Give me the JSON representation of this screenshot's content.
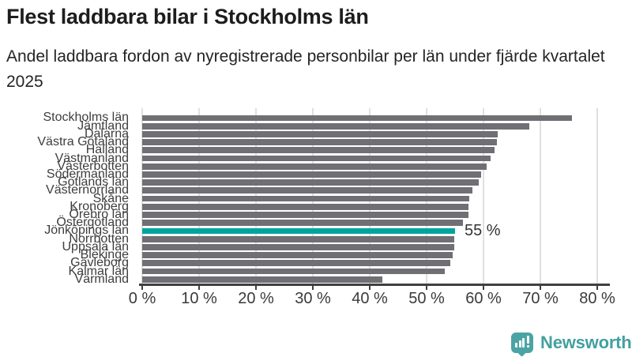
{
  "header": {
    "title": "Flest laddbara bilar i Stockholms län",
    "subtitle": "Andel laddbara fordon av nyregistrerade personbilar per län under fjärde kvartalet 2025"
  },
  "chart_data": {
    "type": "bar",
    "orientation": "horizontal",
    "title": "Flest laddbara bilar i Stockholms län",
    "subtitle": "Andel laddbara fordon av nyregistrerade personbilar per län under fjärde kvartalet 2025",
    "unit": "%",
    "categories": [
      "Stockholms län",
      "Jämtland",
      "Dalarna",
      "Västra Götaland",
      "Halland",
      "Västmanland",
      "Västerbotten",
      "Södermanland",
      "Gotlands län",
      "Västernorrland",
      "Skåne",
      "Kronoberg",
      "Örebro län",
      "Östergötland",
      "Jönköpings län",
      "Norrbotten",
      "Uppsala län",
      "Blekinge",
      "Gävleborg",
      "Kalmar län",
      "Värmland"
    ],
    "values": [
      75.5,
      68.0,
      62.5,
      62.3,
      61.9,
      61.2,
      60.5,
      59.6,
      59.2,
      58.0,
      57.5,
      57.4,
      57.3,
      56.4,
      55.0,
      54.9,
      54.8,
      54.6,
      54.1,
      53.2,
      42.2
    ],
    "highlight": {
      "index": 14,
      "category": "Jönköpings län",
      "annotation": "55 %"
    },
    "xlabel": "",
    "ylabel": "",
    "xlim": [
      0,
      80
    ],
    "xticks": {
      "values": [
        0,
        10,
        20,
        30,
        40,
        50,
        60,
        70,
        80
      ],
      "labels": [
        "0 %",
        "10 %",
        "20 %",
        "30 %",
        "40 %",
        "50 %",
        "60 %",
        "70 %",
        "80 %"
      ]
    },
    "grid": "vertical",
    "legend": "none",
    "colors": {
      "bar": "#6f6f74",
      "highlight": "#00a49e",
      "gridline": "#e0e0e0",
      "axis": "#3f3f3f",
      "label": "#3d3d3d"
    }
  },
  "footer": {
    "brand": "Newsworthy",
    "logo_icon": "bar-chart-exclamation-speech-bubble-icon",
    "brand_color": "#43a0a0"
  }
}
